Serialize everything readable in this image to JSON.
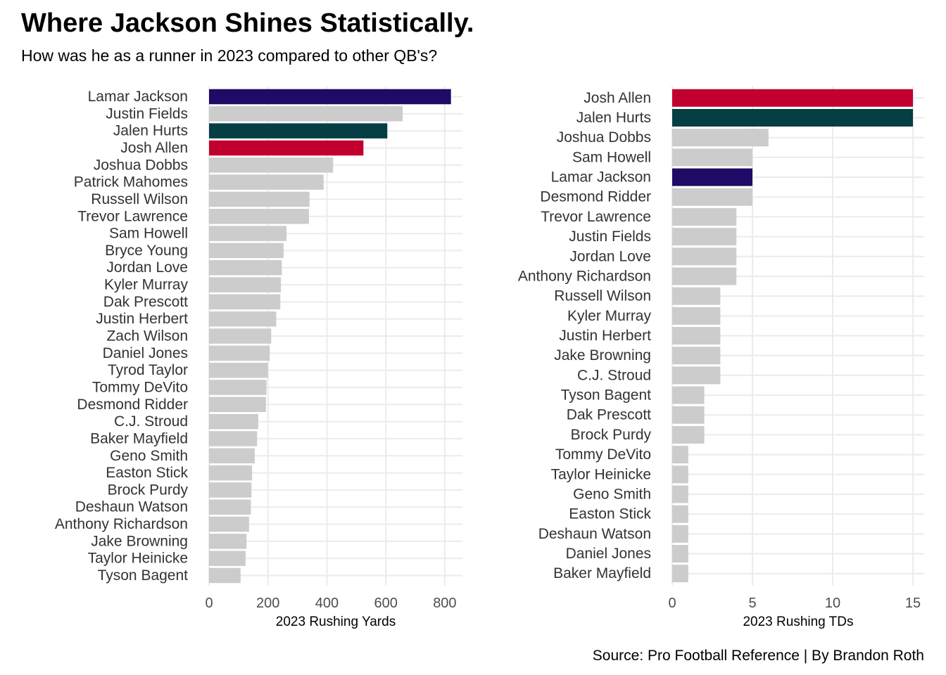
{
  "title": "Where Jackson Shines Statistically.",
  "subtitle": "How was he as a runner in 2023 compared to other QB's?",
  "caption": "Source: Pro Football Reference | By Brandon Roth",
  "colors": {
    "default_bar": "#cccccc",
    "lamar_jackson": "#1d0b66",
    "jalen_hurts": "#053e43",
    "josh_allen": "#c10030",
    "grid": "#ebebeb"
  },
  "chart_data": [
    {
      "type": "bar",
      "orientation": "horizontal",
      "xlabel": "2023 Rushing Yards",
      "xlim": [
        0,
        860
      ],
      "xticks": [
        0,
        200,
        400,
        600,
        800
      ],
      "tick_labels": [
        "0",
        "200",
        "400",
        "600",
        "800"
      ],
      "grid": true,
      "categories": [
        "Lamar Jackson",
        "Justin Fields",
        "Jalen Hurts",
        "Josh Allen",
        "Joshua Dobbs",
        "Patrick Mahomes",
        "Russell Wilson",
        "Trevor Lawrence",
        "Sam Howell",
        "Bryce Young",
        "Jordan Love",
        "Kyler Murray",
        "Dak Prescott",
        "Justin Herbert",
        "Zach Wilson",
        "Daniel Jones",
        "Tyrod Taylor",
        "Tommy DeVito",
        "Desmond Ridder",
        "C.J. Stroud",
        "Baker Mayfield",
        "Geno Smith",
        "Easton Stick",
        "Brock Purdy",
        "Deshaun Watson",
        "Anthony Richardson",
        "Jake Browning",
        "Taylor Heinicke",
        "Tyson Bagent"
      ],
      "values": [
        821,
        657,
        605,
        524,
        421,
        389,
        341,
        339,
        263,
        253,
        247,
        244,
        242,
        228,
        211,
        206,
        200,
        195,
        193,
        167,
        163,
        155,
        146,
        144,
        142,
        136,
        127,
        124,
        107
      ],
      "highlight": {
        "Lamar Jackson": "#1d0b66",
        "Jalen Hurts": "#053e43",
        "Josh Allen": "#c10030"
      }
    },
    {
      "type": "bar",
      "orientation": "horizontal",
      "xlabel": "2023 Rushing TDs",
      "xlim": [
        0,
        15.7
      ],
      "xticks": [
        0,
        5,
        10,
        15
      ],
      "tick_labels": [
        "0",
        "5",
        "10",
        "15"
      ],
      "grid": true,
      "categories": [
        "Josh Allen",
        "Jalen Hurts",
        "Joshua Dobbs",
        "Sam Howell",
        "Lamar Jackson",
        "Desmond Ridder",
        "Trevor Lawrence",
        "Justin Fields",
        "Jordan Love",
        "Anthony Richardson",
        "Russell Wilson",
        "Kyler Murray",
        "Justin Herbert",
        "Jake Browning",
        "C.J. Stroud",
        "Tyson Bagent",
        "Dak Prescott",
        "Brock Purdy",
        "Tommy DeVito",
        "Taylor Heinicke",
        "Geno Smith",
        "Easton Stick",
        "Deshaun Watson",
        "Daniel Jones",
        "Baker Mayfield"
      ],
      "values": [
        15,
        15,
        6,
        5,
        5,
        5,
        4,
        4,
        4,
        4,
        3,
        3,
        3,
        3,
        3,
        2,
        2,
        2,
        1,
        1,
        1,
        1,
        1,
        1,
        1
      ],
      "highlight": {
        "Lamar Jackson": "#1d0b66",
        "Jalen Hurts": "#053e43",
        "Josh Allen": "#c10030"
      }
    }
  ]
}
